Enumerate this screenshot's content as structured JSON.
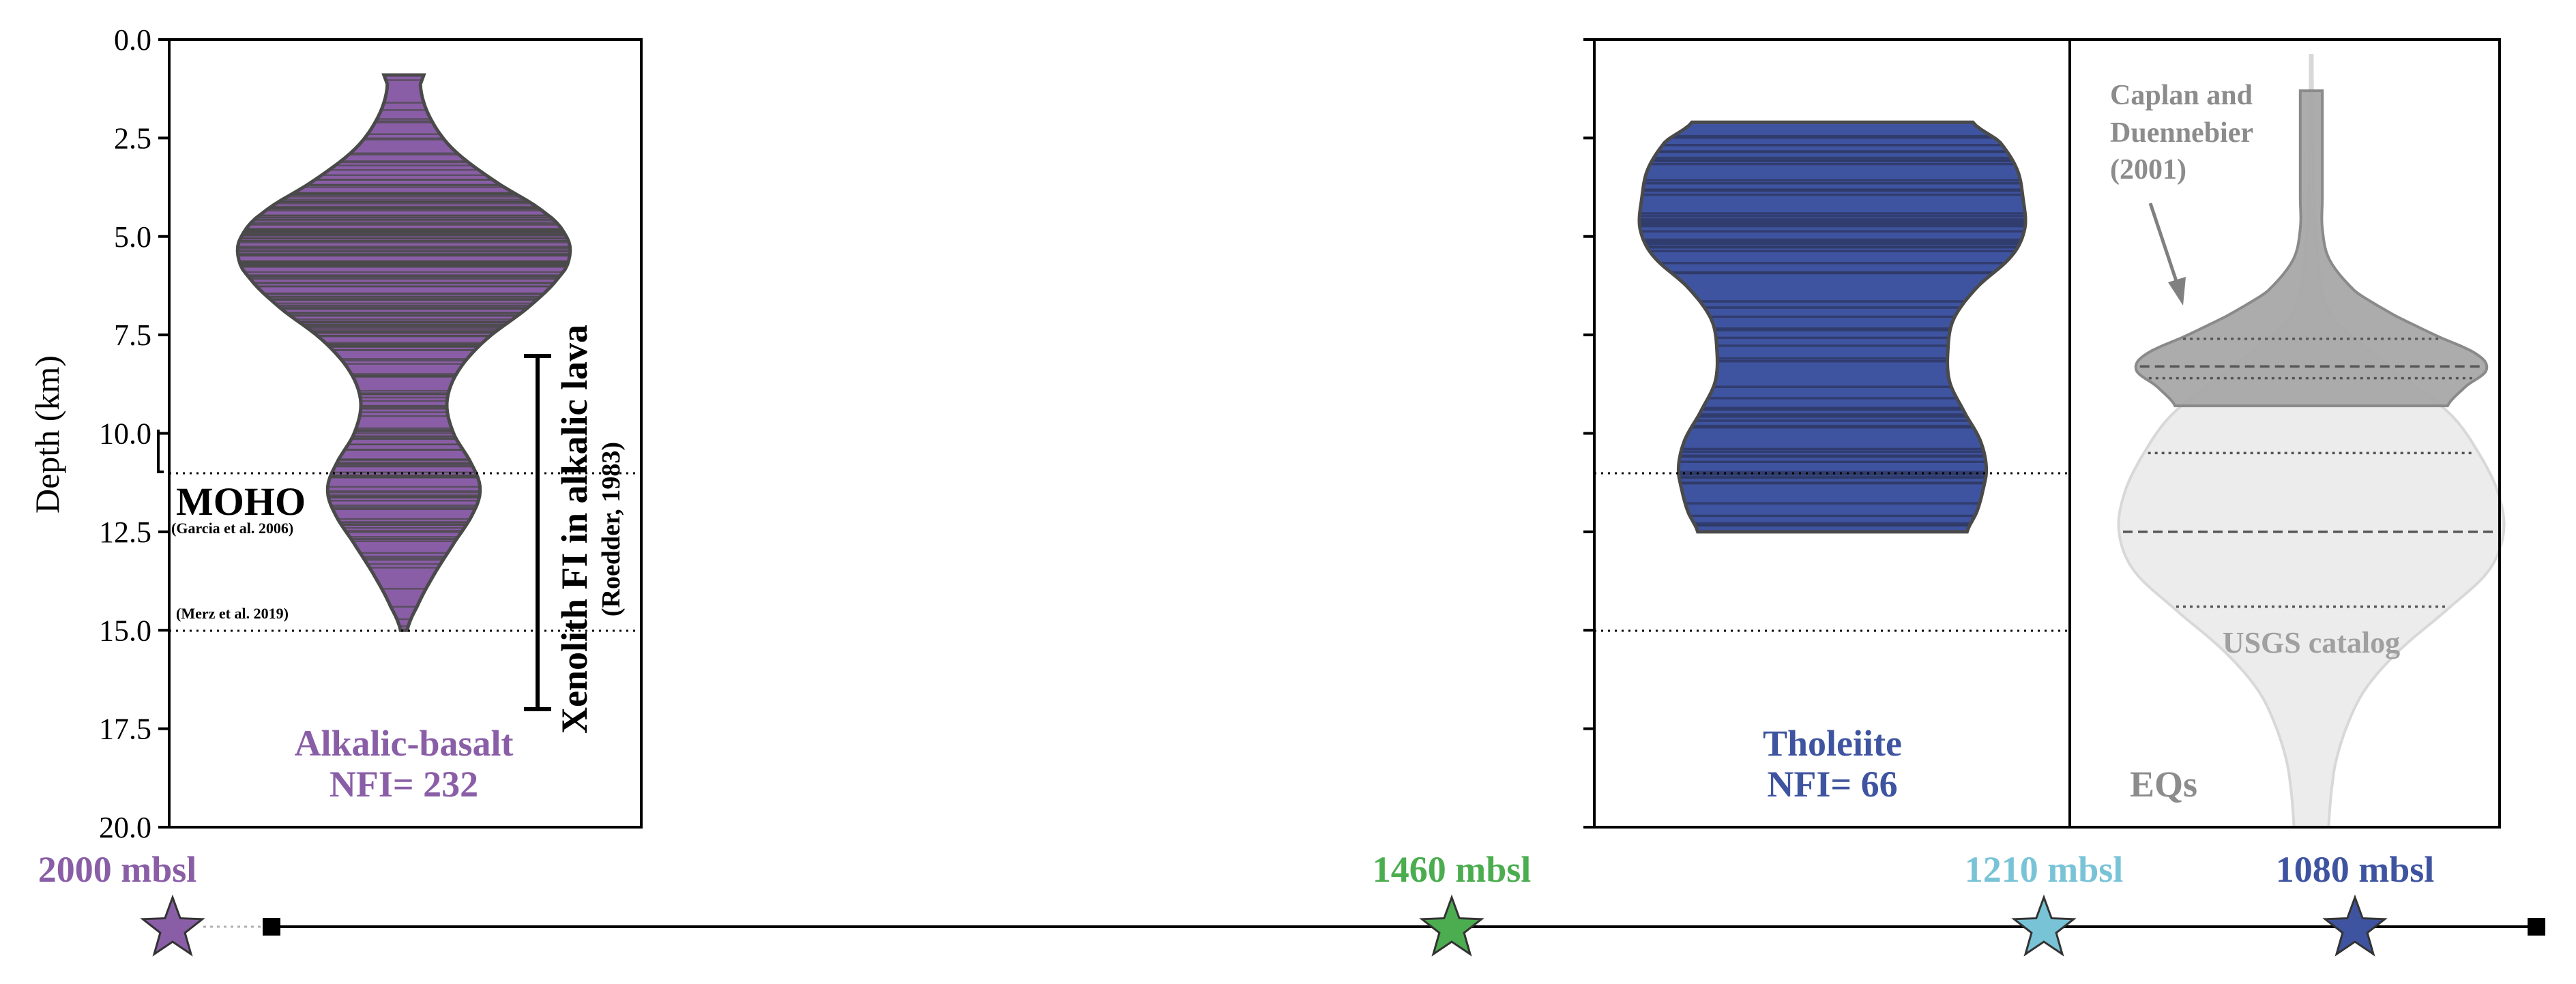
{
  "chart_data": [
    {
      "type": "violin",
      "panel": "alkalic",
      "ylabel": "Depth (km)",
      "ylim": [
        20.0,
        0.0
      ],
      "y_ticks": [
        "0.0",
        "2.5",
        "5.0",
        "7.5",
        "10.0",
        "12.5",
        "15.0",
        "17.5",
        "20.0"
      ],
      "series": [
        {
          "name": "Alkalic-basalt",
          "color": "#8a5ea7",
          "count_label": "NFI= 232",
          "depth_min": 0.9,
          "depth_max": 15.0,
          "density_profile": [
            [
              0.9,
              0.12
            ],
            [
              1.2,
              0.1
            ],
            [
              2.0,
              0.16
            ],
            [
              2.8,
              0.3
            ],
            [
              3.6,
              0.55
            ],
            [
              4.4,
              0.85
            ],
            [
              5.0,
              0.98
            ],
            [
              5.5,
              1.0
            ],
            [
              6.0,
              0.94
            ],
            [
              6.8,
              0.75
            ],
            [
              7.6,
              0.5
            ],
            [
              8.4,
              0.33
            ],
            [
              9.2,
              0.26
            ],
            [
              10.0,
              0.3
            ],
            [
              10.8,
              0.41
            ],
            [
              11.4,
              0.46
            ],
            [
              12.0,
              0.42
            ],
            [
              12.8,
              0.3
            ],
            [
              13.6,
              0.18
            ],
            [
              14.4,
              0.08
            ],
            [
              15.0,
              0.02
            ]
          ]
        }
      ],
      "annotations": [
        {
          "text": "MOHO",
          "depth": 11.0
        },
        {
          "text": "(Garcia et al. 2006)"
        },
        {
          "text": "(Merz et al. 2019)",
          "depth": 15.0
        },
        {
          "text": "Xenolith FI in alkalic lava",
          "range": [
            8.0,
            17.0
          ]
        },
        {
          "text": "(Roedder, 1983)"
        }
      ],
      "reference_lines": [
        11.0,
        15.0
      ]
    },
    {
      "type": "violin",
      "panel": "tholeiite",
      "ylim": [
        20.0,
        0.0
      ],
      "series": [
        {
          "name": "Tholeiite",
          "color": "#3f54a0",
          "count_label": "NFI= 66",
          "depth_min": 2.1,
          "depth_max": 12.5,
          "density_profile": [
            [
              2.1,
              0.73
            ],
            [
              2.6,
              0.87
            ],
            [
              3.3,
              0.96
            ],
            [
              4.0,
              0.99
            ],
            [
              4.8,
              1.0
            ],
            [
              5.5,
              0.93
            ],
            [
              6.3,
              0.75
            ],
            [
              7.1,
              0.63
            ],
            [
              7.9,
              0.6
            ],
            [
              8.7,
              0.61
            ],
            [
              9.5,
              0.69
            ],
            [
              10.2,
              0.77
            ],
            [
              10.9,
              0.8
            ],
            [
              11.5,
              0.78
            ],
            [
              12.0,
              0.75
            ],
            [
              12.5,
              0.7
            ]
          ]
        }
      ],
      "reference_lines": [
        11.0,
        15.0
      ]
    },
    {
      "type": "violin",
      "panel": "earthquakes",
      "label": "EQs",
      "ylim": [
        20.0,
        0.0
      ],
      "series": [
        {
          "name": "Caplan and Duennebier (2001)",
          "color": "#a8a8a8",
          "depth_min": 1.3,
          "depth_max": 9.3,
          "quartiles": [
            7.6,
            8.3,
            8.6
          ],
          "density_profile": [
            [
              1.3,
              0.06
            ],
            [
              2.0,
              0.06
            ],
            [
              3.0,
              0.06
            ],
            [
              4.0,
              0.06
            ],
            [
              4.8,
              0.06
            ],
            [
              5.6,
              0.1
            ],
            [
              6.4,
              0.24
            ],
            [
              7.0,
              0.45
            ],
            [
              7.5,
              0.67
            ],
            [
              8.0,
              0.9
            ],
            [
              8.4,
              0.95
            ],
            [
              8.8,
              0.84
            ],
            [
              9.3,
              0.74
            ]
          ]
        },
        {
          "name": "USGS catalog",
          "color": "#e2e2e2",
          "depth_min": 0.4,
          "depth_max": 20.0,
          "quartiles": [
            10.5,
            12.5,
            14.4
          ],
          "density_profile": [
            [
              0.4,
              0.005
            ],
            [
              3.0,
              0.01
            ],
            [
              5.0,
              0.025
            ],
            [
              7.0,
              0.1
            ],
            [
              8.5,
              0.45
            ],
            [
              9.5,
              0.72
            ],
            [
              10.5,
              0.87
            ],
            [
              11.5,
              0.97
            ],
            [
              12.5,
              1.0
            ],
            [
              13.5,
              0.92
            ],
            [
              14.5,
              0.7
            ],
            [
              15.5,
              0.46
            ],
            [
              16.5,
              0.28
            ],
            [
              17.5,
              0.18
            ],
            [
              18.5,
              0.12
            ],
            [
              20.0,
              0.09
            ]
          ]
        }
      ],
      "reference_lines": []
    }
  ],
  "timeline": {
    "stars": [
      {
        "label": "2000 mbsl",
        "color": "#8a5ea7"
      },
      {
        "label": "1460 mbsl",
        "color": "#4bad4f"
      },
      {
        "label": "1210 mbsl",
        "color": "#79c3d7"
      },
      {
        "label": "1080 mbsl",
        "color": "#3f54a0"
      }
    ]
  },
  "text": {
    "ylabel": "Depth (km)",
    "moho": "MOHO",
    "moho_ref": "(Garcia et al. 2006)",
    "merz_ref": "(Merz et al. 2019)",
    "xenolith": "Xenolith FI in alkalic lava",
    "roedder": "(Roedder, 1983)",
    "alk_name": "Alkalic-basalt",
    "alk_nfi": "NFI= 232",
    "thol_name": "Tholeiite",
    "thol_nfi": "NFI= 66",
    "cd_line1": "Caplan and",
    "cd_line2": "Duennebier",
    "cd_line3": "(2001)",
    "usgs": "USGS catalog",
    "eqs": "EQs",
    "star1": "2000 mbsl",
    "star2": "1460 mbsl",
    "star3": "1210 mbsl",
    "star4": "1080 mbsl"
  },
  "colors": {
    "alkalic": "#8a5ea7",
    "tholeiite": "#3f54a0",
    "green": "#4bad4f",
    "cyan": "#79c3d7",
    "grey_text": "#8c8c8c"
  }
}
